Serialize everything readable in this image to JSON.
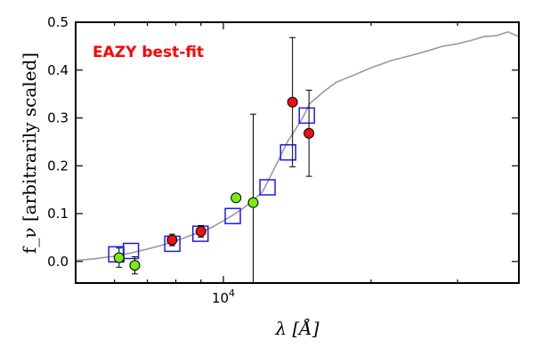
{
  "chart_data": {
    "type": "scatter",
    "annotation": "EAZY best-fit",
    "xlabel": "λ [Å]",
    "ylabel": "f_ν [arbitrarily scaled]",
    "xscale": "log",
    "xlim": [
      5000,
      40000
    ],
    "ylim": [
      -0.045,
      0.5
    ],
    "x_tick_labels": [
      {
        "value": 10000,
        "base": "10",
        "exponent": "4"
      }
    ],
    "y_ticks": [
      0.0,
      0.1,
      0.2,
      0.3,
      0.4,
      0.5
    ],
    "y_tick_labels": [
      "0.0",
      "0.1",
      "0.2",
      "0.3",
      "0.4",
      "0.5"
    ],
    "grid": false,
    "colors": {
      "template_line": "#9a9a9a",
      "model_box": "#1a1aff",
      "red_point": "#ee1111",
      "green_point": "#77ee11",
      "annotation": "#ff0000"
    },
    "series": [
      {
        "kind": "model-boxes",
        "x": [
          6050,
          6480,
          7870,
          8980,
          10450,
          12300,
          13550,
          14790
        ],
        "y": [
          0.015,
          0.022,
          0.037,
          0.058,
          0.095,
          0.155,
          0.228,
          0.305
        ]
      },
      {
        "kind": "points-red",
        "x": [
          7860,
          9000,
          13830,
          14940
        ],
        "y": [
          0.045,
          0.063,
          0.333,
          0.268
        ],
        "yerr": [
          0.012,
          0.012,
          0.135,
          0.09
        ]
      },
      {
        "kind": "points-green",
        "x": [
          6130,
          6600,
          10610,
          11500
        ],
        "y": [
          0.008,
          -0.008,
          0.133,
          0.123
        ],
        "yerr": [
          0.02,
          0.018,
          0.0,
          0.185
        ]
      },
      {
        "kind": "template-spectrum",
        "x": [
          5000,
          5500,
          6000,
          6500,
          7000,
          7500,
          8000,
          8500,
          9000,
          9500,
          10000,
          10500,
          11000,
          11500,
          12000,
          12500,
          13000,
          13500,
          14000,
          14500,
          15000,
          16000,
          17000,
          18000,
          19000,
          20000,
          22000,
          24000,
          26000,
          28000,
          30000,
          32000,
          34000,
          36000,
          38000,
          40000
        ],
        "y": [
          0.002,
          0.006,
          0.011,
          0.018,
          0.026,
          0.034,
          0.043,
          0.053,
          0.062,
          0.072,
          0.085,
          0.098,
          0.112,
          0.128,
          0.145,
          0.18,
          0.215,
          0.25,
          0.275,
          0.3,
          0.33,
          0.355,
          0.375,
          0.385,
          0.395,
          0.405,
          0.42,
          0.43,
          0.44,
          0.45,
          0.455,
          0.462,
          0.47,
          0.472,
          0.48,
          0.47
        ]
      }
    ]
  }
}
